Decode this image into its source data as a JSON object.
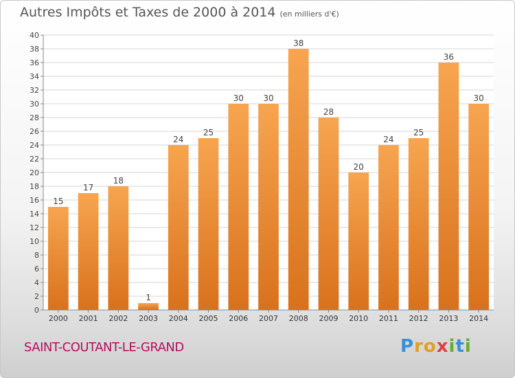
{
  "header": {
    "title": "Autres Impôts et Taxes de 2000 à 2014",
    "subtitle": "(en milliers d'€)"
  },
  "footer": {
    "commune": "SAINT-COUTANT-LE-GRAND",
    "logo": {
      "text": "Proxiti",
      "letters": [
        {
          "char": "P",
          "color": "#3a8fd6"
        },
        {
          "char": "r",
          "color": "#e0a020"
        },
        {
          "char": "o",
          "color": "#e0a020"
        },
        {
          "char": "x",
          "color": "#e04040"
        },
        {
          "char": "i",
          "color": "#60b030"
        },
        {
          "char": "t",
          "color": "#3a8fd6"
        },
        {
          "char": "i",
          "color": "#60b030"
        }
      ]
    }
  },
  "chart_data": {
    "type": "bar",
    "title": "Autres Impôts et Taxes de 2000 à 2014",
    "subtitle": "(en milliers d'€)",
    "categories": [
      "2000",
      "2001",
      "2002",
      "2003",
      "2004",
      "2005",
      "2006",
      "2007",
      "2008",
      "2009",
      "2010",
      "2011",
      "2012",
      "2013",
      "2014"
    ],
    "values": [
      15,
      17,
      18,
      1,
      24,
      25,
      30,
      30,
      38,
      28,
      20,
      24,
      25,
      36,
      30
    ],
    "ylim": [
      0,
      40
    ],
    "yticks": [
      0,
      2,
      4,
      6,
      8,
      10,
      12,
      14,
      16,
      18,
      20,
      22,
      24,
      26,
      28,
      30,
      32,
      34,
      36,
      38,
      40
    ],
    "grid": true,
    "bar_color_top": "#f7a550",
    "bar_color_bottom": "#d9711c"
  }
}
